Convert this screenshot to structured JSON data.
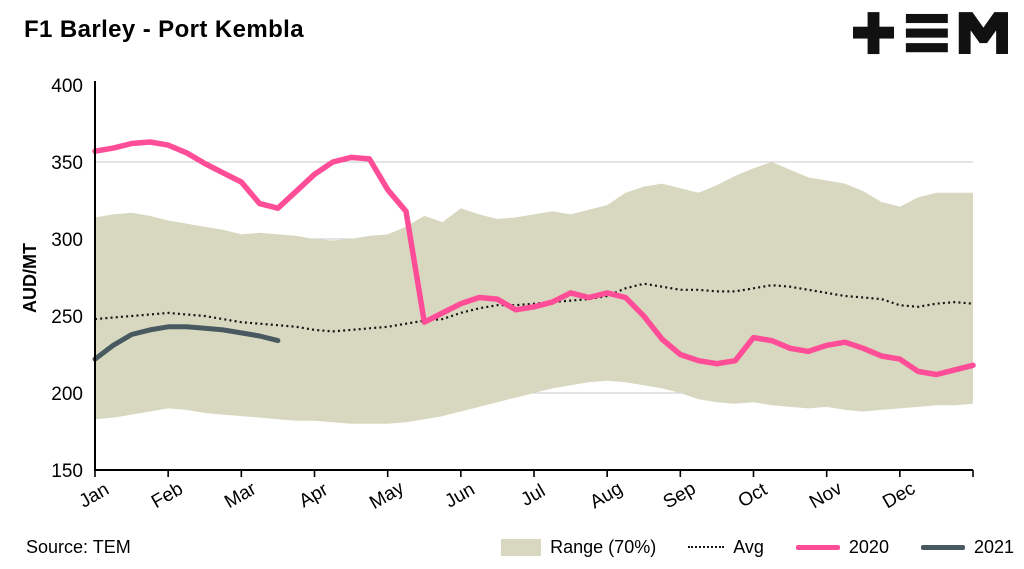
{
  "header": {
    "title": "F1 Barley - Port Kembla",
    "logo": "TEM"
  },
  "footer": {
    "source": "Source: TEM"
  },
  "chart_data": {
    "type": "line",
    "title": "F1 Barley - Port Kembla",
    "xlabel": "",
    "ylabel": "AUD/MT",
    "ylim": [
      150,
      400
    ],
    "yticks": [
      150,
      200,
      250,
      300,
      350,
      400
    ],
    "categories": [
      "Jan",
      "Feb",
      "Mar",
      "Apr",
      "May",
      "Jun",
      "Jul",
      "Aug",
      "Sep",
      "Oct",
      "Nov",
      "Dec"
    ],
    "x_step_months": 0.25,
    "grid": true,
    "grid_color": "#c9c9c9",
    "legend_position": "bottom",
    "band": {
      "name": "Range (70%)",
      "color": "#d7d8bf",
      "upper": [
        314,
        316,
        317,
        315,
        312,
        310,
        308,
        306,
        303,
        304,
        303,
        302,
        300,
        299,
        300,
        302,
        303,
        308,
        315,
        311,
        320,
        316,
        313,
        314,
        316,
        318,
        316,
        319,
        322,
        330,
        334,
        336,
        333,
        330,
        335,
        341,
        346,
        350,
        345,
        340,
        338,
        336,
        331,
        324,
        321,
        327,
        330,
        330,
        330
      ],
      "lower": [
        183,
        184,
        186,
        188,
        190,
        189,
        187,
        186,
        185,
        184,
        183,
        182,
        182,
        181,
        180,
        180,
        180,
        181,
        183,
        185,
        188,
        191,
        194,
        197,
        200,
        203,
        205,
        207,
        208,
        207,
        205,
        203,
        200,
        196,
        194,
        193,
        194,
        192,
        191,
        190,
        191,
        189,
        188,
        189,
        190,
        191,
        192,
        192,
        193
      ]
    },
    "series": [
      {
        "name": "Avg",
        "color": "#141414",
        "style": "dotted",
        "width": 2.2,
        "values": [
          248,
          249,
          250,
          251,
          252,
          251,
          250,
          248,
          246,
          245,
          244,
          243,
          241,
          240,
          241,
          242,
          243,
          245,
          247,
          248,
          252,
          255,
          257,
          257,
          258,
          259,
          260,
          261,
          263,
          268,
          271,
          269,
          267,
          267,
          266,
          266,
          268,
          270,
          269,
          267,
          265,
          263,
          262,
          261,
          257,
          256,
          258,
          259,
          258
        ]
      },
      {
        "name": "2020",
        "color": "#ff4d98",
        "style": "solid",
        "width": 5.5,
        "values": [
          357,
          359,
          362,
          363,
          361,
          356,
          349,
          343,
          337,
          323,
          320,
          331,
          342,
          350,
          353,
          352,
          332,
          318,
          246,
          252,
          258,
          262,
          261,
          254,
          256,
          259,
          265,
          262,
          265,
          262,
          250,
          235,
          225,
          221,
          219,
          221,
          236,
          234,
          229,
          227,
          231,
          233,
          229,
          224,
          222,
          214,
          212,
          215,
          218
        ]
      },
      {
        "name": "2021",
        "color": "#485a60",
        "style": "solid",
        "width": 5,
        "values": [
          222,
          231,
          238,
          241,
          243,
          243,
          242,
          241,
          239,
          237,
          234
        ]
      }
    ]
  }
}
